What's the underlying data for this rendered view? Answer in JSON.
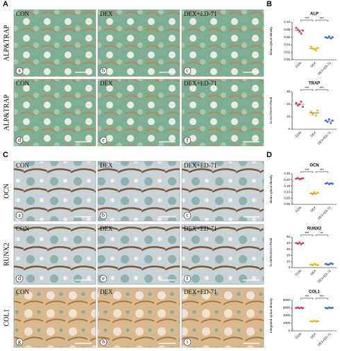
{
  "panels": [
    "A",
    "B",
    "C",
    "D"
  ],
  "row_labels": [
    "ALP&TRAP",
    "ALP&TRAP",
    "OCN",
    "RUNX2",
    "COL1"
  ],
  "image_labels": [
    "CON",
    "DEX",
    "DEX+ED-71"
  ],
  "image_letters": [
    "a",
    "b",
    "c",
    "d",
    "e",
    "f",
    "a",
    "b",
    "c",
    "d",
    "e",
    "f",
    "g",
    "h",
    "i"
  ],
  "chart_data": [
    {
      "type": "dot",
      "title": "ALP",
      "y_label": "Mean optical density",
      "categories": [
        "CON",
        "DEX",
        "DEX+ED-71"
      ],
      "colors": [
        "#d6336c",
        "#f2b705",
        "#3b6fd6"
      ],
      "points": [
        [
          0.085,
          0.08,
          0.075,
          0.07,
          0.078
        ],
        [
          0.035,
          0.03,
          0.028,
          0.025,
          0.032
        ],
        [
          0.06,
          0.058,
          0.062,
          0.057,
          0.06
        ]
      ],
      "means": [
        0.078,
        0.03,
        0.059
      ],
      "ylim": [
        0,
        0.1
      ],
      "yticks": [
        {
          "value": 0,
          "label": "0.00"
        },
        {
          "value": 0.02,
          "label": "0.02"
        },
        {
          "value": 0.04,
          "label": "0.04"
        },
        {
          "value": 0.06,
          "label": "0.06"
        },
        {
          "value": 0.08,
          "label": "0.08"
        },
        {
          "value": 0.1,
          "label": "0.10"
        }
      ],
      "significance": [
        "***",
        "***"
      ]
    },
    {
      "type": "dot",
      "title": "TRAP",
      "y_label": "N.OC/TRAP+/Field",
      "categories": [
        "CON",
        "DEX",
        "DEX+ED-71"
      ],
      "colors": [
        "#d6336c",
        "#f2b705",
        "#3b6fd6"
      ],
      "points": [
        [
          21,
          19,
          20,
          22,
          18
        ],
        [
          14,
          12,
          13,
          11,
          15
        ],
        [
          7,
          6,
          8,
          5,
          7
        ]
      ],
      "means": [
        20,
        13,
        6.6
      ],
      "ylim": [
        0,
        30
      ],
      "yticks": [
        0,
        10,
        20,
        30
      ],
      "significance": [
        "***",
        "***"
      ]
    },
    {
      "type": "dot",
      "title": "OCN",
      "y_label": "Mean optical density",
      "categories": [
        "CON",
        "DEX",
        "DEX+ED-71"
      ],
      "colors": [
        "#d6336c",
        "#f2b705",
        "#3b6fd6"
      ],
      "points": [
        [
          0.21,
          0.215,
          0.205,
          0.21,
          0.212
        ],
        [
          0.09,
          0.08,
          0.1,
          0.085,
          0.095
        ],
        [
          0.17,
          0.175,
          0.165,
          0.172,
          0.168
        ]
      ],
      "means": [
        0.21,
        0.09,
        0.17
      ],
      "ylim": [
        0,
        0.25
      ],
      "yticks": [
        {
          "value": 0,
          "label": "0.00"
        },
        {
          "value": 0.05,
          "label": "0.05"
        },
        {
          "value": 0.1,
          "label": "0.10"
        },
        {
          "value": 0.15,
          "label": "0.15"
        },
        {
          "value": 0.2,
          "label": "0.20"
        },
        {
          "value": 0.25,
          "label": "0.25"
        }
      ],
      "significance": [
        "***",
        "***"
      ]
    },
    {
      "type": "dot",
      "title": "RUNX2",
      "y_label": "N.Ob/RUNX2+/Field",
      "categories": [
        "CON",
        "DEX",
        "DEX+ED-71"
      ],
      "colors": [
        "#d6336c",
        "#f2b705",
        "#3b6fd6"
      ],
      "points": [
        [
          40,
          39,
          41,
          38,
          40
        ],
        [
          5,
          4,
          6,
          5,
          4
        ],
        [
          6,
          5,
          5,
          7,
          6
        ]
      ],
      "means": [
        39.6,
        4.8,
        5.8
      ],
      "ylim": [
        0,
        50
      ],
      "yticks": [
        0,
        10,
        20,
        30,
        40,
        50
      ],
      "significance": [
        "***",
        "**"
      ]
    },
    {
      "type": "dot",
      "title": "COL1",
      "y_label": "Integrated optical density",
      "categories": [
        "CON",
        "DEX",
        "DEX+ED-71"
      ],
      "colors": [
        "#d6336c",
        "#f2b705",
        "#3b6fd6"
      ],
      "points": [
        [
          6000,
          6100,
          5900,
          6050,
          5950
        ],
        [
          2500,
          2400,
          2600,
          2450,
          2550
        ],
        [
          6000,
          5900,
          6100,
          5950,
          6050
        ]
      ],
      "means": [
        6000,
        2500,
        6000
      ],
      "ylim": [
        0,
        8000
      ],
      "yticks": [
        0,
        2000,
        4000,
        6000,
        8000
      ],
      "significance": [
        "***",
        "***"
      ]
    }
  ]
}
